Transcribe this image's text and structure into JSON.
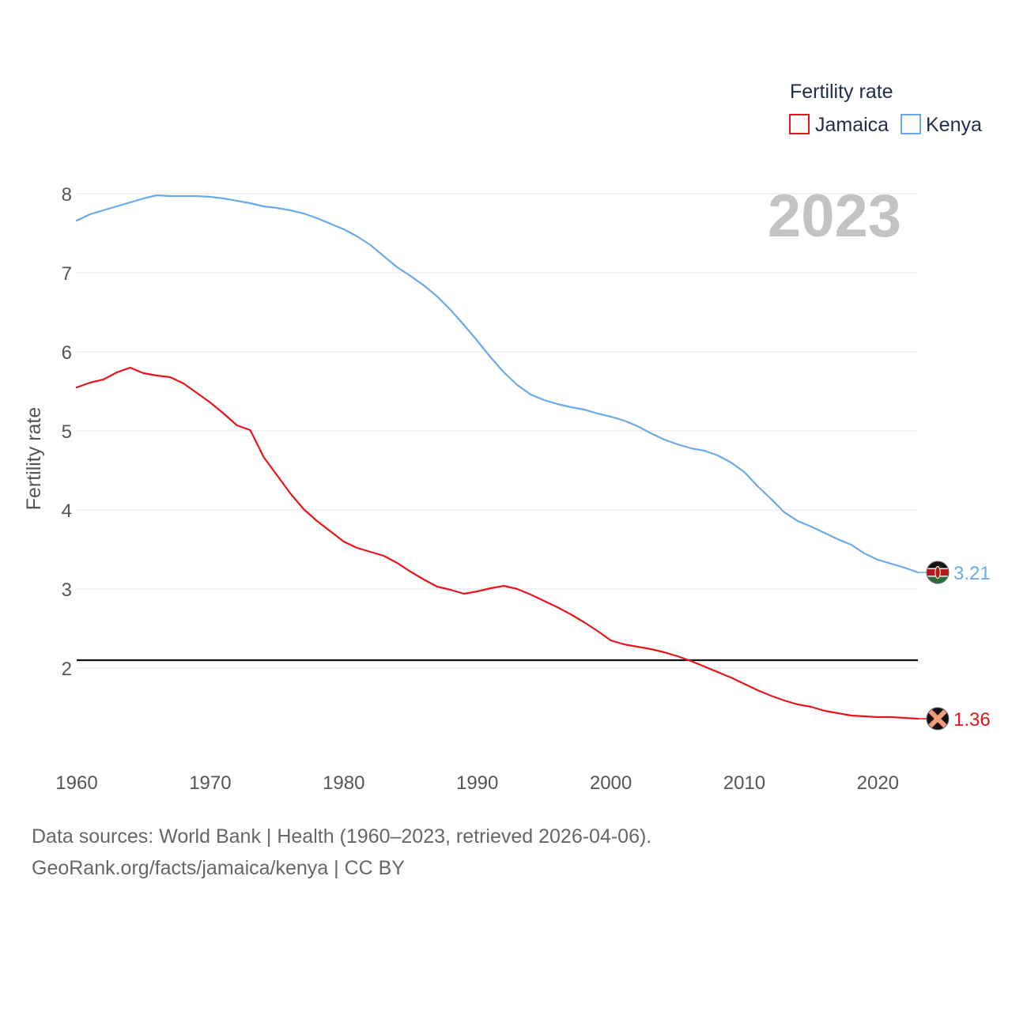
{
  "chart_data": {
    "type": "line",
    "title": "Fertility rate",
    "ylabel": "Fertility rate",
    "xlabel": "",
    "current_year": "2023",
    "xlim": [
      1960,
      2023
    ],
    "ylim": [
      1,
      8
    ],
    "x_ticks": [
      1960,
      1970,
      1980,
      1990,
      2000,
      2010,
      2020
    ],
    "y_ticks": [
      2,
      3,
      4,
      5,
      6,
      7,
      8
    ],
    "grid": true,
    "legend_position": "top-right",
    "reference_line": {
      "y": 2.1
    },
    "x": [
      1960,
      1961,
      1962,
      1963,
      1964,
      1965,
      1966,
      1967,
      1968,
      1969,
      1970,
      1971,
      1972,
      1973,
      1974,
      1975,
      1976,
      1977,
      1978,
      1979,
      1980,
      1981,
      1982,
      1983,
      1984,
      1985,
      1986,
      1987,
      1988,
      1989,
      1990,
      1991,
      1992,
      1993,
      1994,
      1995,
      1996,
      1997,
      1998,
      1999,
      2000,
      2001,
      2002,
      2003,
      2004,
      2005,
      2006,
      2007,
      2008,
      2009,
      2010,
      2011,
      2012,
      2013,
      2014,
      2015,
      2016,
      2017,
      2018,
      2019,
      2020,
      2021,
      2022,
      2023
    ],
    "series": [
      {
        "name": "Jamaica",
        "color": "#e8141c",
        "end_label": "1.36",
        "marker_icon": "jamaica-flag-icon",
        "values": [
          5.55,
          5.61,
          5.65,
          5.74,
          5.8,
          5.73,
          5.7,
          5.68,
          5.6,
          5.48,
          5.36,
          5.22,
          5.07,
          5.01,
          4.67,
          4.44,
          4.21,
          4.01,
          3.86,
          3.73,
          3.6,
          3.52,
          3.47,
          3.42,
          3.33,
          3.22,
          3.12,
          3.03,
          2.99,
          2.94,
          2.97,
          3.01,
          3.04,
          3.0,
          2.93,
          2.85,
          2.77,
          2.68,
          2.58,
          2.47,
          2.35,
          2.3,
          2.27,
          2.24,
          2.2,
          2.15,
          2.09,
          2.02,
          1.95,
          1.88,
          1.8,
          1.72,
          1.65,
          1.59,
          1.54,
          1.51,
          1.46,
          1.43,
          1.4,
          1.39,
          1.38,
          1.38,
          1.37,
          1.36
        ]
      },
      {
        "name": "Kenya",
        "color": "#6aaae6",
        "end_label": "3.21",
        "marker_icon": "kenya-flag-icon",
        "values": [
          7.66,
          7.74,
          7.79,
          7.84,
          7.89,
          7.94,
          7.98,
          7.97,
          7.97,
          7.97,
          7.96,
          7.94,
          7.91,
          7.88,
          7.84,
          7.82,
          7.79,
          7.75,
          7.69,
          7.62,
          7.55,
          7.46,
          7.35,
          7.21,
          7.07,
          6.96,
          6.84,
          6.7,
          6.53,
          6.34,
          6.14,
          5.93,
          5.74,
          5.58,
          5.46,
          5.39,
          5.34,
          5.3,
          5.27,
          5.22,
          5.18,
          5.13,
          5.06,
          4.97,
          4.89,
          4.83,
          4.78,
          4.75,
          4.69,
          4.6,
          4.48,
          4.3,
          4.14,
          3.97,
          3.86,
          3.79,
          3.71,
          3.63,
          3.56,
          3.45,
          3.37,
          3.32,
          3.27,
          3.21
        ]
      }
    ]
  },
  "footer": {
    "sources": "Data sources: World Bank | Health (1960–2023, retrieved 2026-04-06).",
    "attribution": "GeoRank.org/facts/jamaica/kenya | CC BY"
  }
}
